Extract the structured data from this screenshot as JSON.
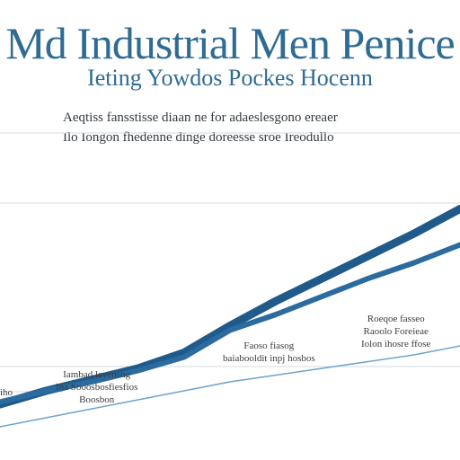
{
  "chart_data": {
    "type": "line",
    "title": "Md Industrial Men Penice",
    "subtitle": "Ieting Yowdos Pockes Hocenn",
    "description": [
      "Aeqtiss fansstisse diaan ne for adaeslesgono ereaer",
      "Ilo Iongon fhedenne dinge doreesse sroe Ireodullo"
    ],
    "xlim": [
      0,
      100
    ],
    "ylim": [
      0,
      100
    ],
    "grid": true,
    "series": [
      {
        "color": "#1f5a8b",
        "x": [
          0,
          10,
          20,
          30,
          40,
          50,
          60,
          70,
          80,
          90,
          100
        ],
        "y": [
          4,
          10,
          15,
          20,
          27,
          39,
          50,
          60,
          70,
          80,
          91
        ]
      },
      {
        "color": "#2c6b9f",
        "x": [
          0,
          10,
          20,
          30,
          40,
          50,
          60,
          70,
          80,
          90,
          100
        ],
        "y": [
          5,
          10,
          14,
          19,
          25,
          37,
          44,
          52,
          60,
          67,
          75
        ]
      },
      {
        "color": "#6fa3cc",
        "x": [
          0,
          10,
          20,
          30,
          40,
          50,
          60,
          70,
          80,
          90,
          100
        ],
        "y": [
          -6,
          -2,
          2,
          6,
          10,
          14,
          17,
          20,
          23,
          26,
          30
        ]
      }
    ],
    "annotations": [
      "Faoso fiasog\nbaiabooldit inpj hosbos",
      "Roeqoe fasseo\nRaoolo Foreieae\nIolon ihosre ffose",
      "Iambad leyensng\nIna Sooosbosfiesfios\nBoosbon",
      "iho"
    ]
  }
}
